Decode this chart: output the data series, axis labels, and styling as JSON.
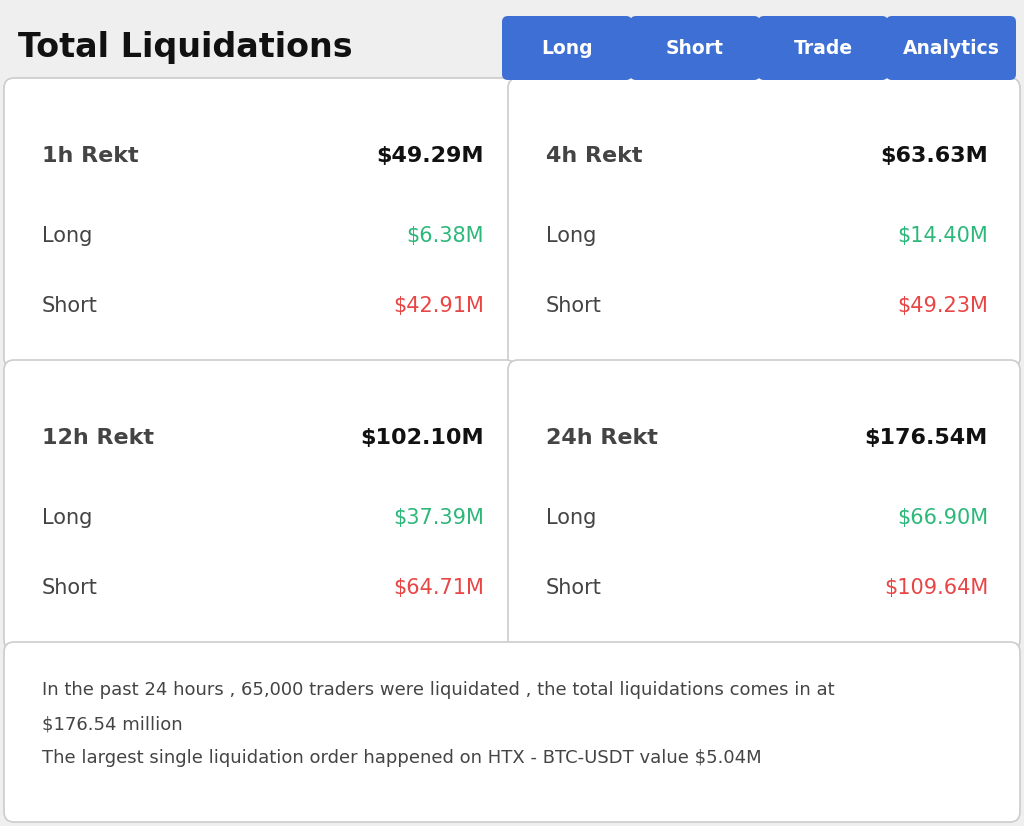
{
  "title": "Total Liquidations",
  "buttons": [
    "Long",
    "Short",
    "Trade",
    "Analytics"
  ],
  "button_color": "#3d6fd4",
  "button_text_color": "#ffffff",
  "background_color": "#efefef",
  "card_background": "#ffffff",
  "card_border_color": "#cccccc",
  "cards": [
    {
      "period": "1h Rekt",
      "total": "$49.29M",
      "long_val": "$6.38M",
      "short_val": "$42.91M"
    },
    {
      "period": "4h Rekt",
      "total": "$63.63M",
      "long_val": "$14.40M",
      "short_val": "$49.23M"
    },
    {
      "period": "12h Rekt",
      "total": "$102.10M",
      "long_val": "$37.39M",
      "short_val": "$64.71M"
    },
    {
      "period": "24h Rekt",
      "total": "$176.54M",
      "long_val": "$66.90M",
      "short_val": "$109.64M"
    }
  ],
  "footer_line1": "In the past 24 hours , 65,000 traders were liquidated , the total liquidations comes in at",
  "footer_line2": "$176.54 million",
  "footer_line3": "The largest single liquidation order happened on HTX - BTC-USDT value $5.04M",
  "label_color": "#444444",
  "total_color": "#111111",
  "long_color": "#2db87a",
  "short_color": "#e84545",
  "period_font_size": 15,
  "value_font_size": 15,
  "title_font_size": 24,
  "footer_font_size": 13
}
